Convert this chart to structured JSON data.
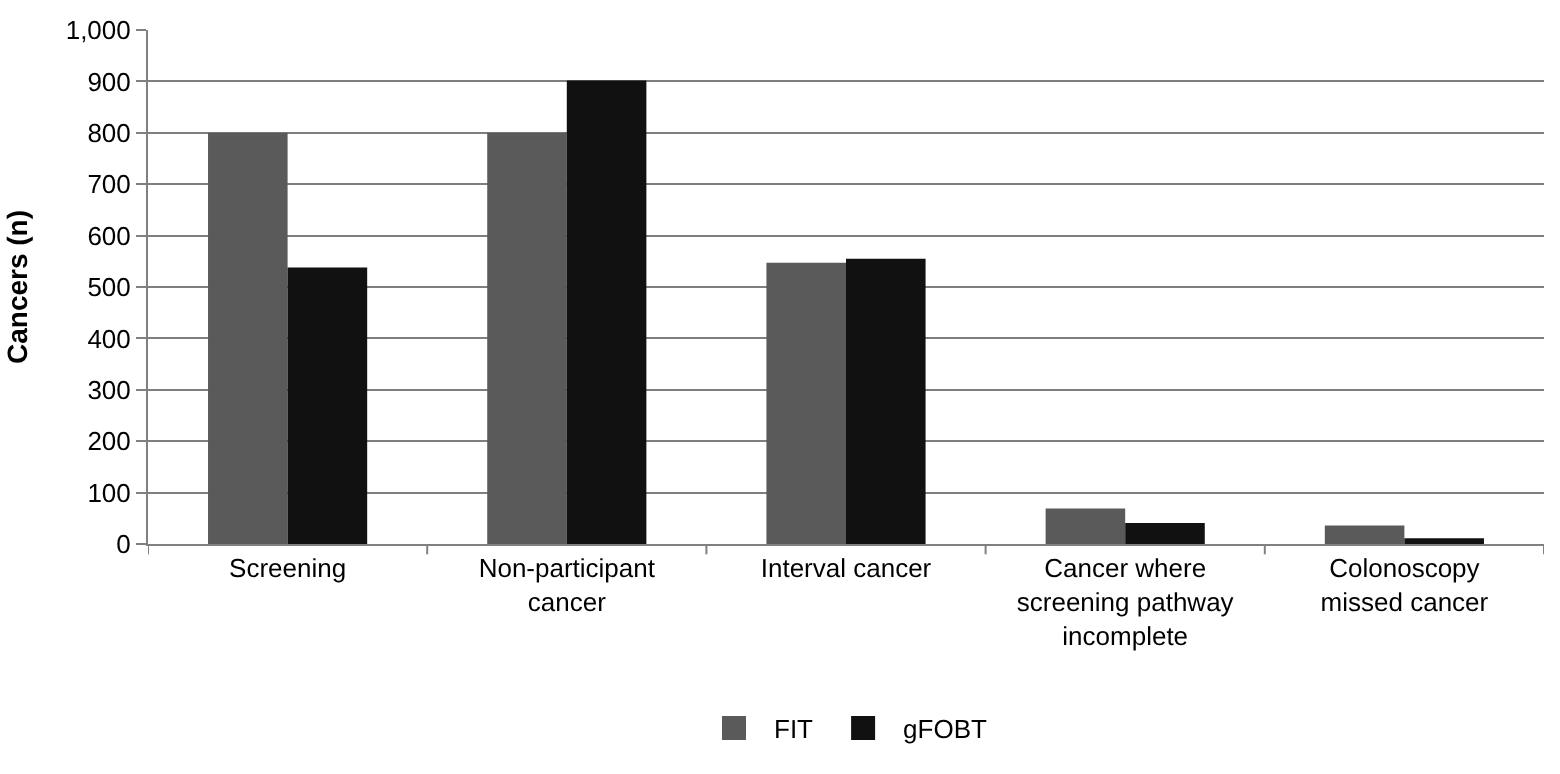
{
  "chart_data": {
    "type": "bar",
    "ylabel": "Cancers (n)",
    "categories": [
      "Screening",
      "Non-participant cancer",
      "Interval cancer",
      "Cancer where screening pathway incomplete",
      "Colonoscopy missed cancer"
    ],
    "series": [
      {
        "name": "FIT",
        "color": "#5a5a5a",
        "values": [
          800,
          800,
          547,
          69,
          36
        ]
      },
      {
        "name": "gFOBT",
        "color": "#111111",
        "values": [
          538,
          902,
          555,
          41,
          11
        ]
      }
    ],
    "ylim": [
      0,
      1000
    ],
    "yticks": [
      0,
      100,
      200,
      300,
      400,
      500,
      600,
      700,
      800,
      900,
      {
        "value": 1000,
        "label": "1,000"
      }
    ],
    "grid": "y",
    "legend": "bottom"
  }
}
